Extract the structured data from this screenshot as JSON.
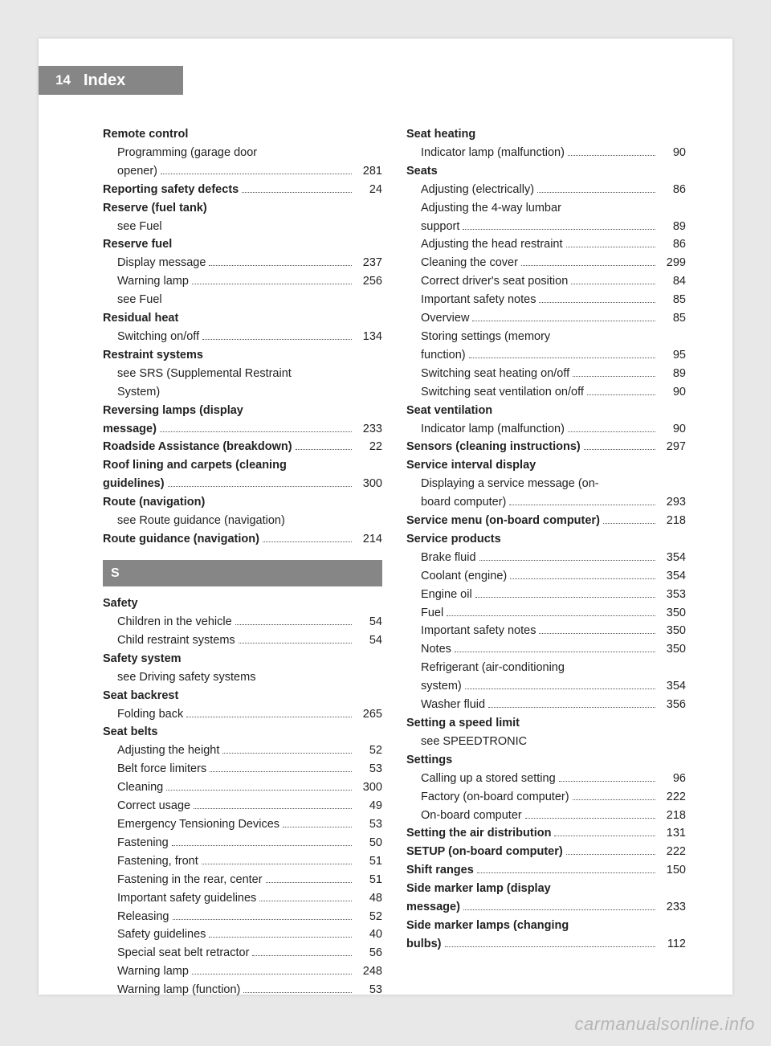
{
  "page_number": "14",
  "header_title": "Index",
  "watermark": "carmanualsonline.info",
  "section_letter": "S",
  "left": [
    {
      "t": "head",
      "b": true,
      "text": "Remote control"
    },
    {
      "t": "sub",
      "text": "Programming (garage door"
    },
    {
      "t": "subrow",
      "text": "opener)",
      "page": "281"
    },
    {
      "t": "row",
      "b": true,
      "text": "Reporting safety defects",
      "page": "24"
    },
    {
      "t": "head",
      "b": true,
      "text": "Reserve (fuel tank)"
    },
    {
      "t": "see",
      "text": "see Fuel"
    },
    {
      "t": "head",
      "b": true,
      "text": "Reserve fuel"
    },
    {
      "t": "subrow",
      "text": "Display message",
      "page": "237"
    },
    {
      "t": "subrow",
      "text": "Warning lamp",
      "page": "256"
    },
    {
      "t": "see",
      "text": "see Fuel"
    },
    {
      "t": "head",
      "b": true,
      "text": "Residual heat"
    },
    {
      "t": "subrow",
      "text": "Switching on/off",
      "page": "134"
    },
    {
      "t": "head",
      "b": true,
      "text": "Restraint systems"
    },
    {
      "t": "see",
      "text": "see SRS (Supplemental Restraint"
    },
    {
      "t": "see",
      "text": "System)"
    },
    {
      "t": "head",
      "b": true,
      "text": "Reversing lamps (display"
    },
    {
      "t": "rowcont",
      "b": true,
      "text": "message)",
      "page": "233"
    },
    {
      "t": "row",
      "b": true,
      "text": "Roadside Assistance (breakdown)",
      "page": "22"
    },
    {
      "t": "head",
      "b": true,
      "text": "Roof lining and carpets (cleaning"
    },
    {
      "t": "rowcont",
      "b": true,
      "text": "guidelines)",
      "page": "300"
    },
    {
      "t": "head",
      "b": true,
      "text": "Route (navigation)"
    },
    {
      "t": "see",
      "text": "see Route guidance (navigation)"
    },
    {
      "t": "row",
      "b": true,
      "text": "Route guidance (navigation)",
      "page": "214"
    },
    {
      "t": "letter"
    },
    {
      "t": "head",
      "b": true,
      "text": "Safety"
    },
    {
      "t": "subrow",
      "text": "Children in the vehicle",
      "page": "54"
    },
    {
      "t": "subrow",
      "text": "Child restraint systems",
      "page": "54"
    },
    {
      "t": "head",
      "b": true,
      "text": "Safety system"
    },
    {
      "t": "see",
      "text": "see Driving safety systems"
    },
    {
      "t": "head",
      "b": true,
      "text": "Seat backrest"
    },
    {
      "t": "subrow",
      "text": "Folding back",
      "page": "265"
    },
    {
      "t": "head",
      "b": true,
      "text": "Seat belts"
    },
    {
      "t": "subrow",
      "text": "Adjusting the height",
      "page": "52"
    },
    {
      "t": "subrow",
      "text": "Belt force limiters",
      "page": "53"
    },
    {
      "t": "subrow",
      "text": "Cleaning",
      "page": "300"
    },
    {
      "t": "subrow",
      "text": "Correct usage",
      "page": "49"
    },
    {
      "t": "subrow",
      "text": "Emergency Tensioning Devices",
      "page": "53"
    },
    {
      "t": "subrow",
      "text": "Fastening",
      "page": "50"
    },
    {
      "t": "subrow",
      "text": "Fastening, front",
      "page": "51"
    },
    {
      "t": "subrow",
      "text": "Fastening in the rear, center",
      "page": "51"
    },
    {
      "t": "subrow",
      "text": "Important safety guidelines",
      "page": "48"
    },
    {
      "t": "subrow",
      "text": "Releasing",
      "page": "52"
    },
    {
      "t": "subrow",
      "text": "Safety guidelines",
      "page": "40"
    },
    {
      "t": "subrow",
      "text": "Special seat belt retractor",
      "page": "56"
    },
    {
      "t": "subrow",
      "text": "Warning lamp",
      "page": "248"
    },
    {
      "t": "subrow",
      "text": "Warning lamp (function)",
      "page": "53"
    }
  ],
  "right": [
    {
      "t": "head",
      "b": true,
      "text": "Seat heating"
    },
    {
      "t": "subrow",
      "text": "Indicator lamp (malfunction)",
      "page": "90"
    },
    {
      "t": "head",
      "b": true,
      "text": "Seats"
    },
    {
      "t": "subrow",
      "text": "Adjusting (electrically)",
      "page": "86"
    },
    {
      "t": "sub",
      "text": "Adjusting the 4-way lumbar"
    },
    {
      "t": "subrow",
      "text": "support",
      "page": "89"
    },
    {
      "t": "subrow",
      "text": "Adjusting the head restraint",
      "page": "86"
    },
    {
      "t": "subrow",
      "text": "Cleaning the cover",
      "page": "299"
    },
    {
      "t": "subrow",
      "text": "Correct driver's seat position",
      "page": "84"
    },
    {
      "t": "subrow",
      "text": "Important safety notes",
      "page": "85"
    },
    {
      "t": "subrow",
      "text": "Overview",
      "page": "85"
    },
    {
      "t": "sub",
      "text": "Storing settings (memory"
    },
    {
      "t": "subrow",
      "text": "function)",
      "page": "95"
    },
    {
      "t": "subrow",
      "text": "Switching seat heating on/off",
      "page": "89"
    },
    {
      "t": "subrow",
      "text": "Switching seat ventilation on/off",
      "page": "90"
    },
    {
      "t": "head",
      "b": true,
      "text": "Seat ventilation"
    },
    {
      "t": "subrow",
      "text": "Indicator lamp (malfunction)",
      "page": "90"
    },
    {
      "t": "row",
      "b": true,
      "text": "Sensors (cleaning instructions)",
      "page": "297"
    },
    {
      "t": "head",
      "b": true,
      "text": "Service interval display"
    },
    {
      "t": "sub",
      "text": "Displaying a service message (on-"
    },
    {
      "t": "subrow",
      "text": "board computer)",
      "page": "293"
    },
    {
      "t": "row",
      "b": true,
      "text": "Service menu (on-board computer)",
      "page": "218"
    },
    {
      "t": "head",
      "b": true,
      "text": "Service products"
    },
    {
      "t": "subrow",
      "text": "Brake fluid",
      "page": "354"
    },
    {
      "t": "subrow",
      "text": "Coolant (engine)",
      "page": "354"
    },
    {
      "t": "subrow",
      "text": "Engine oil",
      "page": "353"
    },
    {
      "t": "subrow",
      "text": "Fuel",
      "page": "350"
    },
    {
      "t": "subrow",
      "text": "Important safety notes",
      "page": "350"
    },
    {
      "t": "subrow",
      "text": "Notes",
      "page": "350"
    },
    {
      "t": "sub",
      "text": "Refrigerant (air-conditioning"
    },
    {
      "t": "subrow",
      "text": "system)",
      "page": "354"
    },
    {
      "t": "subrow",
      "text": "Washer fluid",
      "page": "356"
    },
    {
      "t": "head",
      "b": true,
      "text": "Setting a speed limit"
    },
    {
      "t": "see",
      "text": "see SPEEDTRONIC"
    },
    {
      "t": "head",
      "b": true,
      "text": "Settings"
    },
    {
      "t": "subrow",
      "text": "Calling up a stored setting",
      "page": "96"
    },
    {
      "t": "subrow",
      "text": "Factory (on-board computer)",
      "page": "222"
    },
    {
      "t": "subrow",
      "text": "On-board computer",
      "page": "218"
    },
    {
      "t": "row",
      "b": true,
      "text": "Setting the air distribution",
      "page": "131"
    },
    {
      "t": "row",
      "b": true,
      "text": "SETUP (on-board computer)",
      "page": "222"
    },
    {
      "t": "row",
      "b": true,
      "text": "Shift ranges",
      "page": "150"
    },
    {
      "t": "head",
      "b": true,
      "text": "Side marker lamp (display"
    },
    {
      "t": "rowcont",
      "b": true,
      "text": "message)",
      "page": "233"
    },
    {
      "t": "head",
      "b": true,
      "text": "Side marker lamps (changing"
    },
    {
      "t": "rowcont",
      "b": true,
      "text": "bulbs)",
      "page": "112"
    }
  ]
}
